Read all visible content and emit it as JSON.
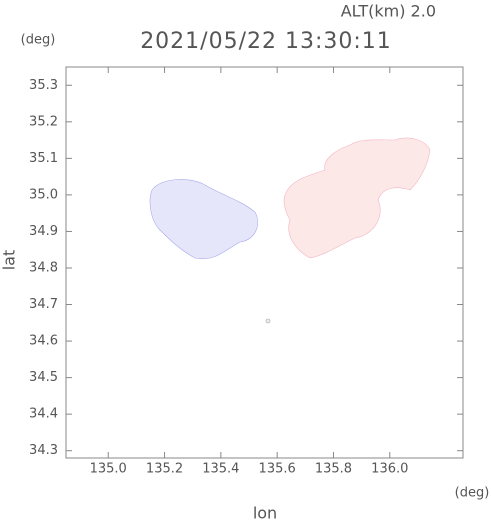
{
  "chart_data": {
    "type": "image",
    "title": "2021/05/22 13:30:11",
    "subtitle": "ALT(km)  2.0",
    "x_label": "lon",
    "y_label": "lat",
    "x_unit": "(deg)",
    "y_unit": "(deg)",
    "xlim": [
      134.85,
      136.26
    ],
    "ylim": [
      34.28,
      35.35
    ],
    "xticks": [
      {
        "value": 135,
        "label": "135.0"
      },
      135.2,
      135.4,
      135.6,
      135.8,
      {
        "value": 136,
        "label": "136.0"
      }
    ],
    "yticks": [
      34.3,
      34.4,
      34.5,
      34.6,
      34.7,
      34.8,
      34.9,
      {
        "value": 35,
        "label": "35.0"
      },
      35.1,
      35.2,
      35.3
    ]
  }
}
